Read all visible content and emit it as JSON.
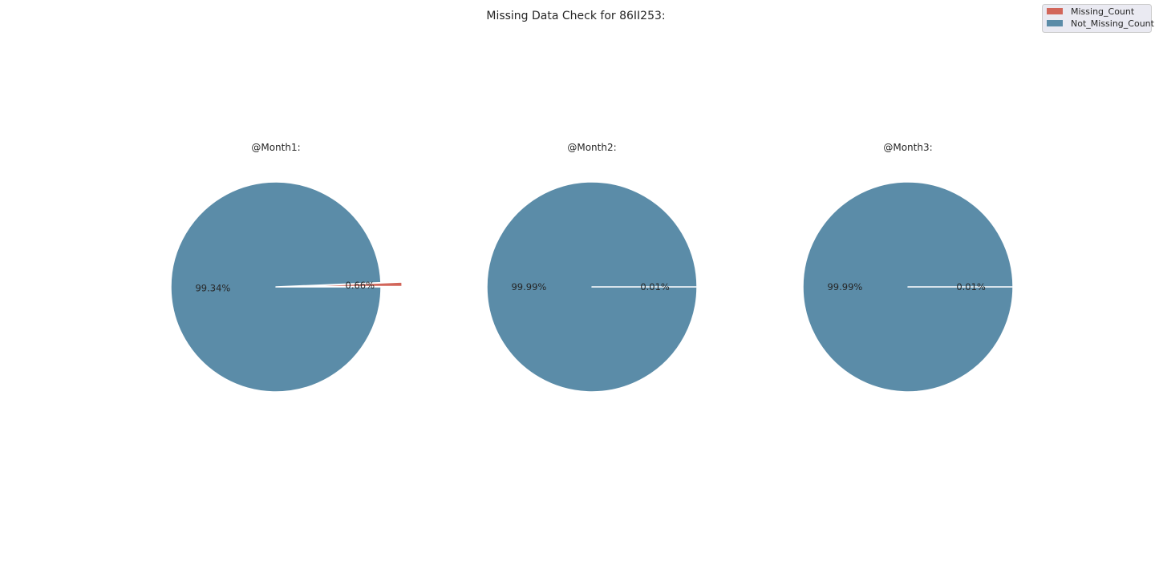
{
  "figure": {
    "title": "Missing Data Check for 86II253:"
  },
  "legend": {
    "placement": "top-right",
    "entries": [
      {
        "label": "Missing_Count",
        "color": "#d2665a"
      },
      {
        "label": "Not_Missing_Count",
        "color": "#5b8ca8"
      }
    ]
  },
  "chart_data": [
    {
      "type": "pie",
      "title": "@Month1:",
      "categories": [
        "Missing_Count",
        "Not_Missing_Count"
      ],
      "values": [
        0.66,
        99.34
      ],
      "labels": [
        "0.66%",
        "99.34%"
      ],
      "explode": [
        0.2,
        0
      ],
      "colors": [
        "#d2665a",
        "#5b8ca8"
      ]
    },
    {
      "type": "pie",
      "title": "@Month2:",
      "categories": [
        "Missing_Count",
        "Not_Missing_Count"
      ],
      "values": [
        0.01,
        99.99
      ],
      "labels": [
        "0.01%",
        "99.99%"
      ],
      "explode": [
        0,
        0
      ],
      "colors": [
        "#d2665a",
        "#5b8ca8"
      ]
    },
    {
      "type": "pie",
      "title": "@Month3:",
      "categories": [
        "Missing_Count",
        "Not_Missing_Count"
      ],
      "values": [
        0.01,
        99.99
      ],
      "labels": [
        "0.01%",
        "99.99%"
      ],
      "explode": [
        0,
        0
      ],
      "colors": [
        "#d2665a",
        "#5b8ca8"
      ]
    }
  ]
}
